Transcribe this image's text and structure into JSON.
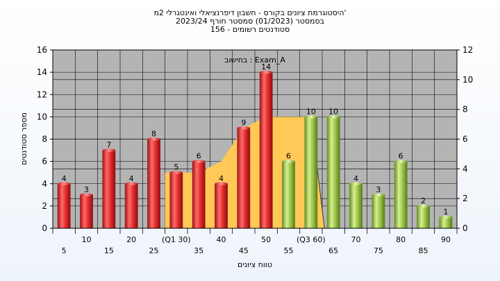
{
  "chart_data": {
    "type": "bar",
    "title_lines": [
      "'היסטוגרמת ציונים בקורס - חשבון דיפרנציאלי ואינטגרלי 2מ",
      "בסמסטר  (01/2023)  סמסטר חורף  2023/24",
      "סטודנטים רשומים - 156"
    ],
    "annotation": "בחישוב : Exam_A",
    "xlabel": "טווח ציונים",
    "ylabel": "מספר סטודנטים",
    "ylim": [
      0,
      16
    ],
    "y_ticks": [
      "0",
      "2",
      "4",
      "6",
      "8",
      "10",
      "12",
      "14",
      "16"
    ],
    "y2lim": [
      0,
      12
    ],
    "y2_ticks": [
      "0",
      "2",
      "4",
      "6",
      "8",
      "10",
      "12"
    ],
    "categories": [
      "5",
      "10",
      "15",
      "20",
      "25",
      "(Q1 30)",
      "35",
      "40",
      "45",
      "50",
      "55",
      "(Q3 60)",
      "65",
      "70",
      "75",
      "80",
      "85",
      "90"
    ],
    "values": [
      4,
      3,
      7,
      4,
      8,
      5,
      6,
      4,
      9,
      14,
      6,
      10,
      10,
      4,
      3,
      6,
      2,
      1
    ],
    "bar_colors": [
      "red",
      "red",
      "red",
      "red",
      "red",
      "red",
      "red",
      "red",
      "red",
      "red",
      "green",
      "green",
      "green",
      "green",
      "green",
      "green",
      "green",
      "green"
    ],
    "area_series": {
      "x_index": [
        5,
        6,
        7,
        8,
        9,
        10,
        11
      ],
      "values": [
        5,
        5,
        6,
        9,
        10,
        10,
        10
      ]
    },
    "colors": {
      "plot_bg": "#b4b4b4",
      "red_bar": "#e02a2a",
      "green_bar": "#9cc448",
      "area": "#ffc857"
    },
    "grid": true,
    "legend": "none"
  }
}
